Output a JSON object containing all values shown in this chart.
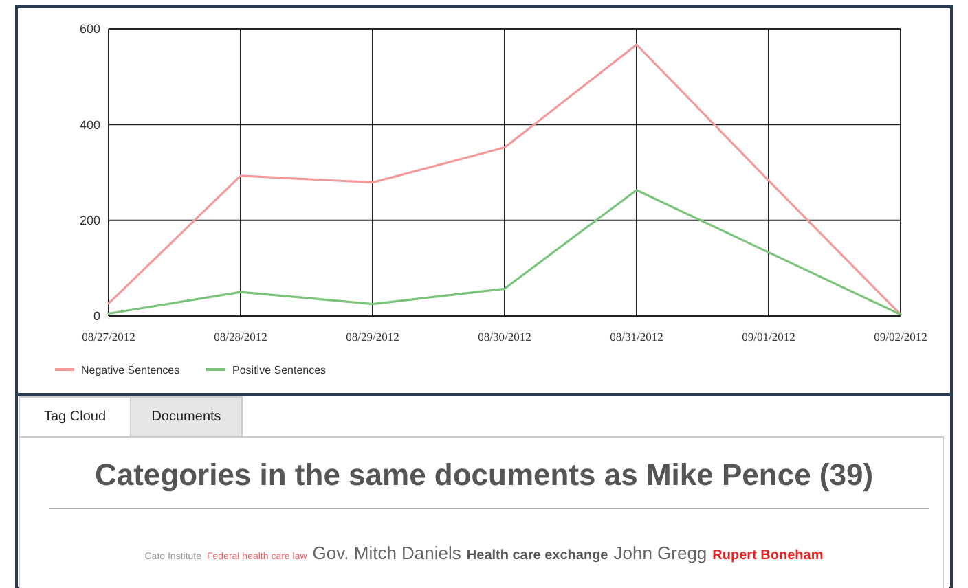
{
  "chart_data": [
    {
      "type": "line",
      "categories": [
        "08/27/2012",
        "08/28/2012",
        "08/29/2012",
        "08/30/2012",
        "08/31/2012",
        "09/01/2012",
        "09/02/2012"
      ],
      "series": [
        {
          "name": "Negative Sentences",
          "color": "#f49a9a",
          "values": [
            26,
            293,
            279,
            352,
            567,
            283,
            3
          ]
        },
        {
          "name": "Positive Sentences",
          "color": "#7cc47c",
          "values": [
            5,
            50,
            25,
            57,
            263,
            133,
            3
          ]
        }
      ],
      "ylim": [
        0,
        600
      ],
      "yticks": [
        0,
        200,
        400,
        600
      ],
      "grid": true,
      "legend": "bottom left",
      "marker": "none"
    },
    {
      "type": "other",
      "title": "Categories in the same documents as Mike Pence (39)",
      "annotations": [
        "Tag Cloud",
        "Documents",
        "Cato Institute",
        "Federal health care law",
        "Gov. Mitch Daniels",
        "Health care exchange",
        "John Gregg",
        "Rupert Boneham"
      ]
    }
  ]
}
